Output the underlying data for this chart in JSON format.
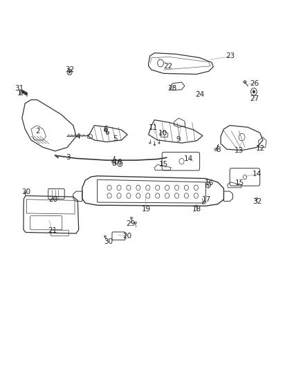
{
  "background_color": "#ffffff",
  "line_color": "#333333",
  "label_color": "#222222",
  "label_fontsize": 7.5
}
